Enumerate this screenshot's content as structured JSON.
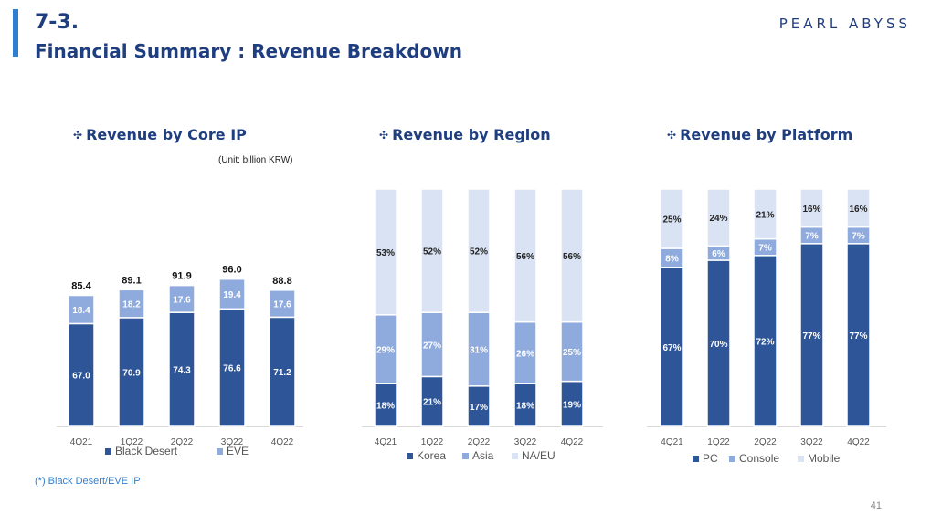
{
  "header": {
    "title_line1": "7-3.",
    "title_line2": "Financial Summary : Revenue Breakdown",
    "logo_text": "PEARL ABYSS"
  },
  "unit_note": "(Unit: billion KRW)",
  "footnote": "(*) Black Desert/EVE IP",
  "page_number": "41",
  "colors": {
    "dark": "#2e5597",
    "mid": "#8faadc",
    "light": "#dae3f3"
  },
  "chart_data": [
    {
      "type": "bar",
      "stacked": true,
      "title": "Revenue by Core IP",
      "categories": [
        "4Q21",
        "1Q22",
        "2Q22",
        "3Q22",
        "4Q22"
      ],
      "series": [
        {
          "name": "Black Desert",
          "values": [
            67.0,
            70.9,
            74.3,
            76.6,
            71.2
          ],
          "labels": [
            "67.0",
            "70.9",
            "74.3",
            "76.6",
            "71.2"
          ]
        },
        {
          "name": "EVE",
          "values": [
            18.4,
            18.2,
            17.6,
            19.4,
            17.6
          ],
          "labels": [
            "18.4",
            "18.2",
            "17.6",
            "19.4",
            "17.6"
          ]
        }
      ],
      "totals": [
        85.4,
        89.1,
        91.9,
        96.0,
        88.8
      ],
      "total_labels": [
        "85.4",
        "89.1",
        "91.9",
        "96.0",
        "88.8"
      ],
      "legend": "bottom"
    },
    {
      "type": "bar",
      "stacked": true,
      "percent": true,
      "title": "Revenue by Region",
      "categories": [
        "4Q21",
        "1Q22",
        "2Q22",
        "3Q22",
        "4Q22"
      ],
      "series": [
        {
          "name": "Korea",
          "values": [
            18,
            21,
            17,
            18,
            19
          ],
          "labels": [
            "18%",
            "21%",
            "17%",
            "18%",
            "19%"
          ]
        },
        {
          "name": "Asia",
          "values": [
            29,
            27,
            31,
            26,
            25
          ],
          "labels": [
            "29%",
            "27%",
            "31%",
            "26%",
            "25%"
          ]
        },
        {
          "name": "NA/EU",
          "values": [
            53,
            52,
            52,
            56,
            56
          ],
          "labels": [
            "53%",
            "52%",
            "52%",
            "56%",
            "56%"
          ]
        }
      ],
      "legend": "bottom"
    },
    {
      "type": "bar",
      "stacked": true,
      "percent": true,
      "title": "Revenue by Platform",
      "categories": [
        "4Q21",
        "1Q22",
        "2Q22",
        "3Q22",
        "4Q22"
      ],
      "series": [
        {
          "name": "PC",
          "values": [
            67,
            70,
            72,
            77,
            77
          ],
          "labels": [
            "67%",
            "70%",
            "72%",
            "77%",
            "77%"
          ]
        },
        {
          "name": "Console",
          "values": [
            8,
            6,
            7,
            7,
            7
          ],
          "labels": [
            "8%",
            "6%",
            "7%",
            "7%",
            "7%"
          ]
        },
        {
          "name": "Mobile",
          "values": [
            25,
            24,
            21,
            16,
            16
          ],
          "labels": [
            "25%",
            "24%",
            "21%",
            "16%",
            "16%"
          ]
        }
      ],
      "legend": "bottom"
    }
  ]
}
